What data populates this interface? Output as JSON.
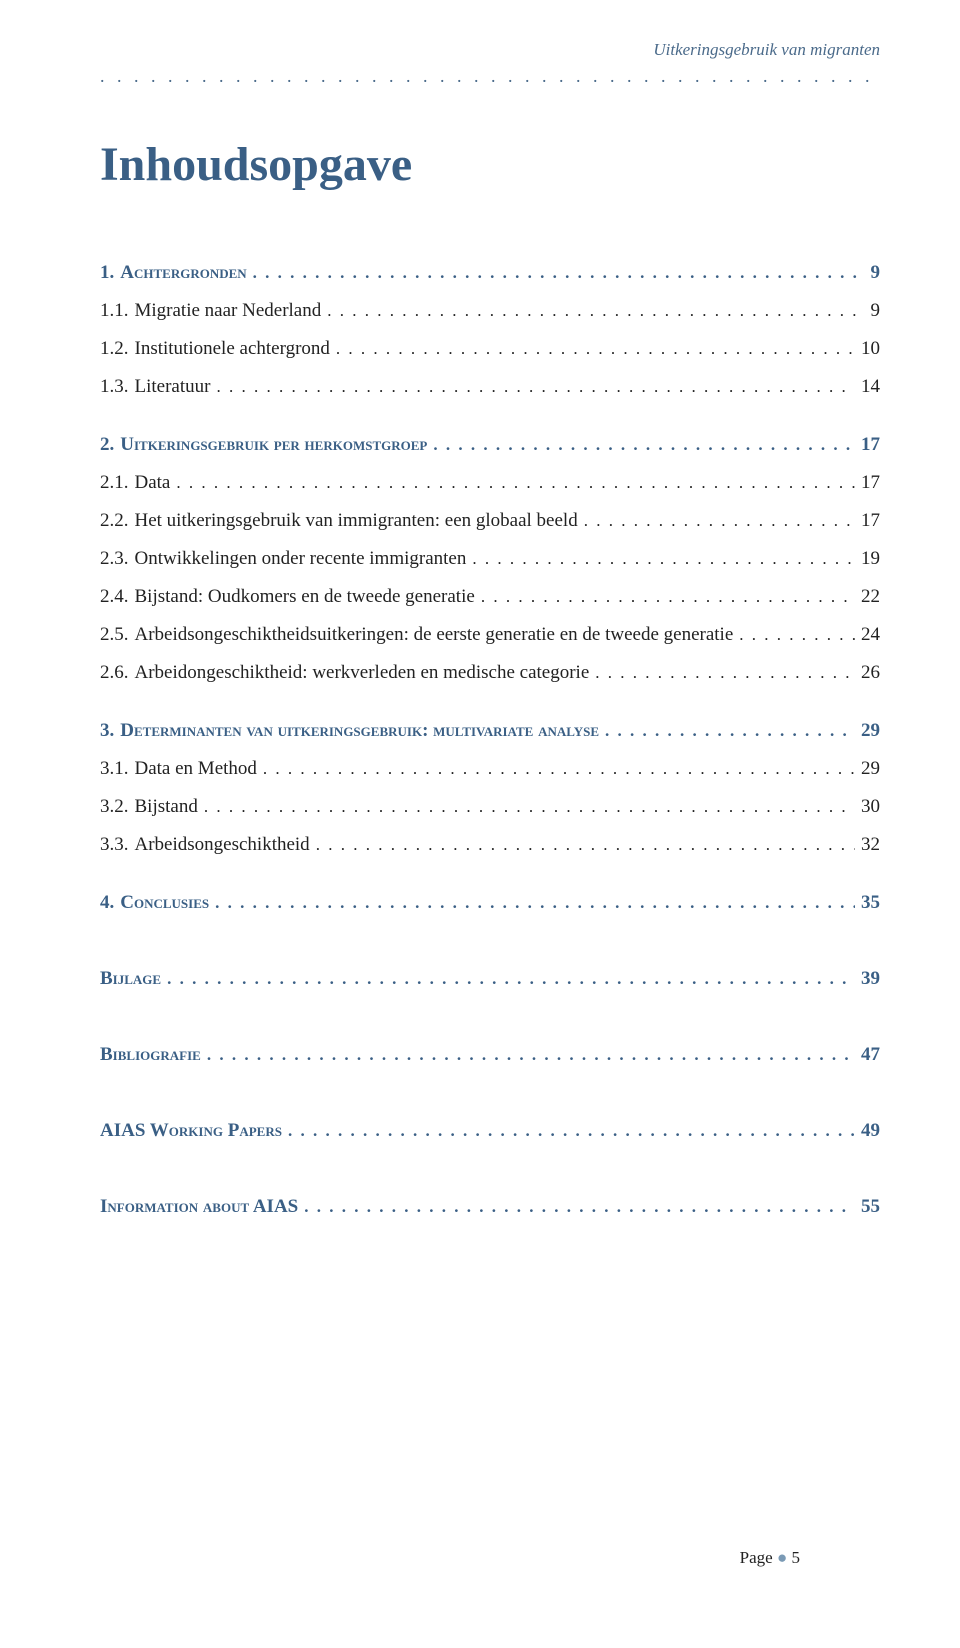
{
  "running_header": "Uitkeringsgebruik van migranten",
  "title": "Inhoudsopgave",
  "toc": [
    {
      "type": "section",
      "num": "1.",
      "text": "Achtergronden",
      "page": "9"
    },
    {
      "type": "sub",
      "num": "1.1.",
      "text": "Migratie naar Nederland",
      "page": "9"
    },
    {
      "type": "sub",
      "num": "1.2.",
      "text": "Institutionele achtergrond",
      "page": "10"
    },
    {
      "type": "sub",
      "num": "1.3.",
      "text": "Literatuur",
      "page": "14"
    },
    {
      "type": "break"
    },
    {
      "type": "section",
      "num": "2.",
      "text": "Uitkeringsgebruik per herkomstgroep",
      "page": "17"
    },
    {
      "type": "sub",
      "num": "2.1.",
      "text": "Data",
      "page": "17"
    },
    {
      "type": "sub",
      "num": "2.2.",
      "text": "Het uitkeringsgebruik van immigranten: een globaal beeld",
      "page": "17"
    },
    {
      "type": "sub",
      "num": "2.3.",
      "text": "Ontwikkelingen onder recente immigranten",
      "page": "19"
    },
    {
      "type": "sub",
      "num": "2.4.",
      "text": "Bijstand: Oudkomers en de tweede generatie",
      "page": "22"
    },
    {
      "type": "sub",
      "num": "2.5.",
      "text": "Arbeidsongeschiktheidsuitkeringen: de eerste generatie en de tweede generatie",
      "page": "24"
    },
    {
      "type": "sub",
      "num": "2.6.",
      "text": "Arbeidongeschiktheid: werkverleden en medische categorie",
      "page": "26"
    },
    {
      "type": "break"
    },
    {
      "type": "section",
      "num": "3.",
      "text": "Determinanten van uitkeringsgebruik: multivariate analyse",
      "page": "29"
    },
    {
      "type": "sub",
      "num": "3.1.",
      "text": "Data en Method",
      "page": "29"
    },
    {
      "type": "sub",
      "num": "3.2.",
      "text": "Bijstand",
      "page": "30"
    },
    {
      "type": "sub",
      "num": "3.3.",
      "text": "Arbeidsongeschiktheid",
      "page": "32"
    },
    {
      "type": "break"
    },
    {
      "type": "section",
      "num": "4.",
      "text": "Conclusies",
      "page": "35"
    },
    {
      "type": "bigbreak"
    },
    {
      "type": "section",
      "num": "",
      "text": "Bijlage",
      "page": "39"
    },
    {
      "type": "bigbreak"
    },
    {
      "type": "section",
      "num": "",
      "text": "Bibliografie",
      "page": "47"
    },
    {
      "type": "bigbreak"
    },
    {
      "type": "section",
      "num": "",
      "text": "AIAS Working Papers",
      "page": "49"
    },
    {
      "type": "bigbreak"
    },
    {
      "type": "section",
      "num": "",
      "text": "Information about AIAS",
      "page": "55"
    }
  ],
  "footer": {
    "label": "Page",
    "num": "5"
  },
  "colors": {
    "heading": "#3a5f85",
    "running": "#4a6a8a",
    "body": "#222222",
    "bullet": "#7a9ab5",
    "background": "#ffffff"
  }
}
